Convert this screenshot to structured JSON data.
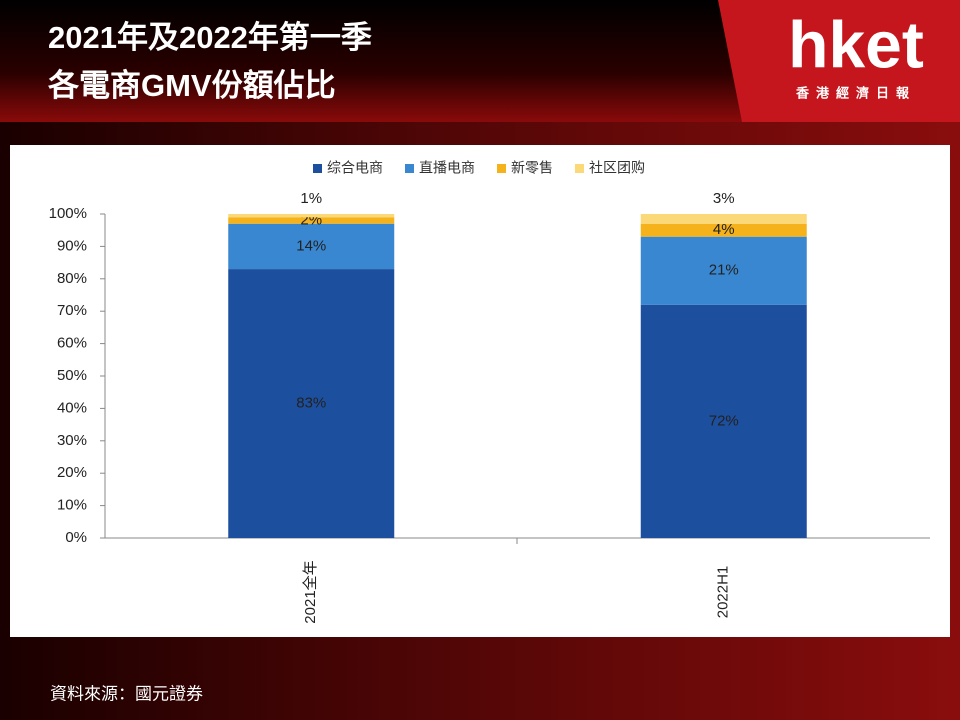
{
  "header": {
    "title_lines": [
      "2021年及2022年第一季",
      "各電商GMV份額佔比"
    ],
    "logo": "hket",
    "logo_sub": "香港經濟日報"
  },
  "chart_data": {
    "type": "stacked-bar",
    "categories": [
      "2021全年",
      "2022H1"
    ],
    "series": [
      {
        "name": "综合电商",
        "color": "#1d4f9f",
        "values": [
          83,
          72
        ],
        "value_labels": [
          "83%",
          "72%"
        ]
      },
      {
        "name": "直播电商",
        "color": "#3a87d1",
        "values": [
          14,
          21
        ],
        "value_labels": [
          "14%",
          "21%"
        ]
      },
      {
        "name": "新零售",
        "color": "#f5b21b",
        "values": [
          2,
          4
        ],
        "value_labels": [
          "2%",
          "4%"
        ]
      },
      {
        "name": "社区团购",
        "color": "#fcd978",
        "values": [
          1,
          3
        ],
        "value_labels": [
          "1%",
          "3%"
        ]
      }
    ],
    "ylim": [
      0,
      100
    ],
    "yticks": [
      {
        "value": 0,
        "label": "0%"
      },
      {
        "value": 10,
        "label": "10%"
      },
      {
        "value": 20,
        "label": "20%"
      },
      {
        "value": 30,
        "label": "30%"
      },
      {
        "value": 40,
        "label": "40%"
      },
      {
        "value": 50,
        "label": "50%"
      },
      {
        "value": 60,
        "label": "60%"
      },
      {
        "value": 70,
        "label": "70%"
      },
      {
        "value": 80,
        "label": "80%"
      },
      {
        "value": 90,
        "label": "90%"
      },
      {
        "value": 100,
        "label": "100%"
      }
    ],
    "grid": false,
    "legend": "top"
  },
  "footer": {
    "source": "資料來源：國元證券"
  }
}
